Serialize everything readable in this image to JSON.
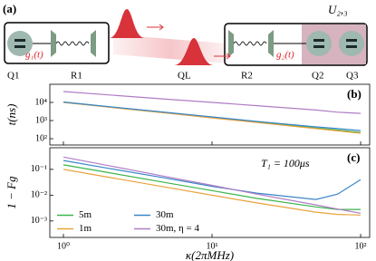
{
  "diagram": {
    "panel_label": "(a)",
    "coupling_1": "g₁(t)",
    "coupling_2": "g₂(t)",
    "q1": "Q1",
    "r1": "R1",
    "ql": "QL",
    "r2": "R2",
    "q2": "Q2",
    "q3": "Q3",
    "unitary": "U₂,₃"
  },
  "chart_data": [
    {
      "type": "line",
      "panel_label": "(b)",
      "ylabel": "t(ns)",
      "xlog": true,
      "ylog": true,
      "grid": false,
      "xlim": [
        0.81,
        115
      ],
      "ylim": [
        45,
        100000
      ],
      "xticks": [
        1,
        10,
        100
      ],
      "yticks": [
        {
          "value": 100,
          "label": "10²"
        },
        {
          "value": 1000,
          "label": "10³"
        },
        {
          "value": 10000,
          "label": "10⁴"
        }
      ],
      "x": [
        1,
        2,
        5,
        10,
        20,
        50,
        70,
        100
      ],
      "series": [
        {
          "color": "#3cb44b",
          "values": [
            10500,
            5800,
            2700,
            1500,
            830,
            390,
            300,
            220
          ]
        },
        {
          "color": "#e8a33d",
          "values": [
            10000,
            5500,
            2560,
            1410,
            780,
            360,
            270,
            200
          ]
        },
        {
          "color": "#3a86c8",
          "values": [
            10500,
            5900,
            2800,
            1600,
            900,
            450,
            360,
            280
          ]
        },
        {
          "color": "#b07cc6",
          "values": [
            40000,
            26000,
            15000,
            10000,
            6600,
            3800,
            2900,
            2500
          ]
        }
      ]
    },
    {
      "type": "line",
      "panel_label": "(c)",
      "ylabel": "1 − Fg",
      "xlabel": "κ(2πMHz)",
      "annotation": "T₁ = 100μs",
      "xlog": true,
      "ylog": true,
      "grid": false,
      "legend": "lower left",
      "legend_ncol": 2,
      "xlim": [
        0.81,
        115
      ],
      "ylim": [
        0.00023,
        0.69
      ],
      "xticks": [
        {
          "value": 1,
          "label": "10⁰"
        },
        {
          "value": 10,
          "label": "10¹"
        },
        {
          "value": 100,
          "label": "10²"
        }
      ],
      "yticks": [
        {
          "value": 0.001,
          "label": "10⁻³"
        },
        {
          "value": 0.01,
          "label": "10⁻²"
        },
        {
          "value": 0.1,
          "label": "10⁻¹"
        }
      ],
      "x": [
        1,
        2,
        5,
        10,
        20,
        50,
        70,
        100
      ],
      "series": [
        {
          "name": "5m",
          "color": "#3cb44b",
          "values": [
            0.15,
            0.075,
            0.03,
            0.015,
            0.0075,
            0.0035,
            0.0028,
            0.0028
          ]
        },
        {
          "name": "1m",
          "color": "#e8a33d",
          "values": [
            0.1,
            0.05,
            0.02,
            0.01,
            0.005,
            0.0022,
            0.0018,
            0.0017
          ]
        },
        {
          "name": "30m",
          "color": "#3a86c8",
          "values": [
            0.22,
            0.11,
            0.045,
            0.022,
            0.012,
            0.0068,
            0.011,
            0.04
          ]
        },
        {
          "name": "30m, η = 4",
          "color": "#b07cc6",
          "values": [
            0.3,
            0.14,
            0.051,
            0.024,
            0.011,
            0.0042,
            0.0029,
            0.002
          ]
        }
      ]
    }
  ]
}
